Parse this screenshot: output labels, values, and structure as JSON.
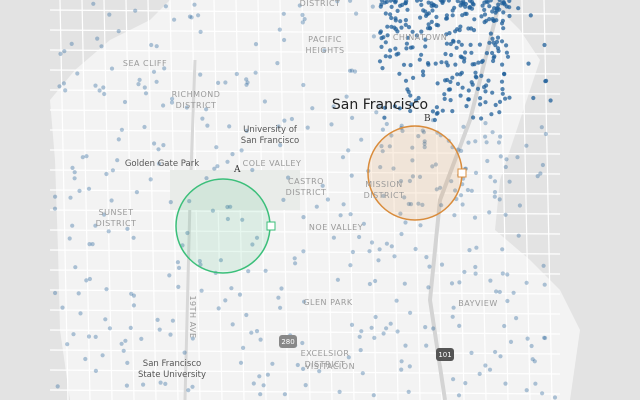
{
  "map": {
    "title": "San Francisco",
    "labels": [
      {
        "lines": [
          "DISTRICT"
        ]
      },
      {
        "lines": [
          "SEA CLIFF"
        ]
      },
      {
        "lines": [
          "PACIFIC",
          "HEIGHTS"
        ]
      },
      {
        "lines": [
          "RICHMOND",
          "DISTRICT"
        ]
      },
      {
        "lines": [
          "CHINATOWN"
        ]
      },
      {
        "lines": [
          "University of",
          "San Francisco"
        ]
      },
      {
        "lines": [
          "Golden Gate Park"
        ]
      },
      {
        "lines": [
          "COLE VALLEY"
        ]
      },
      {
        "lines": [
          "CASTRO",
          "DISTRICT"
        ]
      },
      {
        "lines": [
          "MISSION",
          "DISTRICT"
        ]
      },
      {
        "lines": [
          "SUNSET",
          "DISTRICT"
        ]
      },
      {
        "lines": [
          "NOE VALLEY"
        ]
      },
      {
        "lines": [
          "GLEN PARK"
        ]
      },
      {
        "lines": [
          "BAYVIEW"
        ]
      },
      {
        "lines": [
          "EXCELSIOR",
          "DISTRICT"
        ]
      },
      {
        "lines": [
          "VISITACION"
        ]
      },
      {
        "lines": [
          "San Francisco",
          "State University"
        ]
      },
      {
        "lines": [
          "19TH AVE"
        ]
      }
    ],
    "shields": [
      "101",
      "280"
    ],
    "circles": [
      {
        "label": "A"
      },
      {
        "label": "B"
      }
    ]
  }
}
